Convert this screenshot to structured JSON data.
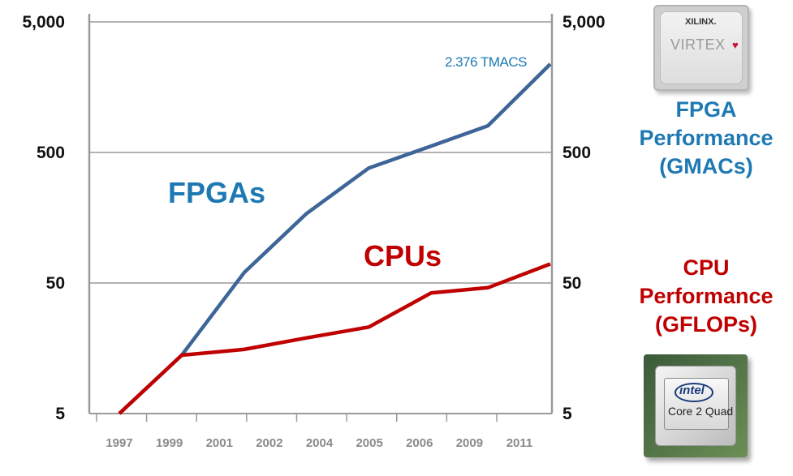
{
  "chart_data": {
    "type": "line",
    "x": [
      "1997",
      "1999",
      "2001",
      "2002",
      "2004",
      "2005",
      "2006",
      "2009",
      "2011"
    ],
    "y_scale": "log",
    "ylim": [
      5,
      5000
    ],
    "yticks": [
      "5",
      "50",
      "500",
      "5,000"
    ],
    "grid": "horizontal",
    "series": [
      {
        "name": "FPGAs",
        "color": "#3d6597",
        "label_color": "#1e79b3",
        "points": [
          {
            "x": 0.0,
            "y": 5
          },
          {
            "x": 1.1,
            "y": 14
          },
          {
            "x": 2.2,
            "y": 60
          },
          {
            "x": 3.3,
            "y": 170
          },
          {
            "x": 4.4,
            "y": 380
          },
          {
            "x": 5.5,
            "y": 560
          },
          {
            "x": 6.5,
            "y": 800
          },
          {
            "x": 7.6,
            "y": 2376
          }
        ]
      },
      {
        "name": "CPUs",
        "color": "#c00000",
        "label_color": "#c00000",
        "points": [
          {
            "x": 0.0,
            "y": 5
          },
          {
            "x": 1.1,
            "y": 14
          },
          {
            "x": 2.2,
            "y": 15.5
          },
          {
            "x": 3.3,
            "y": 19
          },
          {
            "x": 4.4,
            "y": 23
          },
          {
            "x": 5.5,
            "y": 42
          },
          {
            "x": 6.5,
            "y": 46
          },
          {
            "x": 7.6,
            "y": 70
          }
        ]
      }
    ],
    "annotations": [
      "2.376 TMACS"
    ]
  },
  "labels": {
    "fpga_title": "FPGA Performance (GMACs)",
    "cpu_title": "CPU Performance (GFLOPs)"
  },
  "images": {
    "xilinx_brand": "XILINX.",
    "virtex": "VIRTEX",
    "intel": "intel",
    "core": "Core 2 Quad"
  }
}
